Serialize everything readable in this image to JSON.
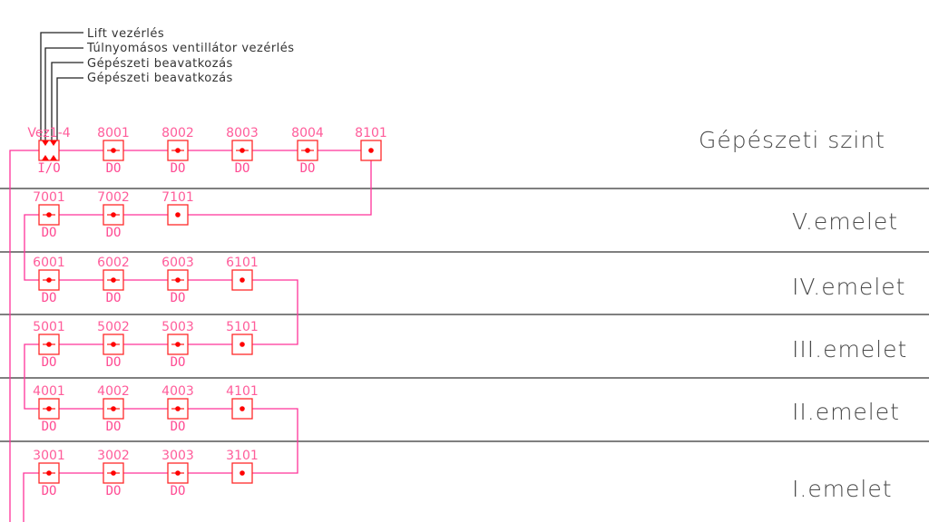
{
  "colors": {
    "wire": "#ff3399",
    "box": "#ff2a2a",
    "label": "#ff5c9a",
    "divider": "#333333",
    "text": "#4a4a4a"
  },
  "legend": [
    "Lift vezérlés",
    "Túlnyomásos ventillátor vezérlés",
    "Gépészeti beavatkozás",
    "Gépészeti beavatkozás"
  ],
  "controller": {
    "id": "Vez1-4",
    "type": "I/O"
  },
  "floors": [
    {
      "name": "Gépészeti szint",
      "devices": [
        {
          "id": "8001",
          "type": "DO"
        },
        {
          "id": "8002",
          "type": "DO"
        },
        {
          "id": "8003",
          "type": "DO"
        },
        {
          "id": "8004",
          "type": "DO"
        },
        {
          "id": "8101",
          "type": ""
        }
      ]
    },
    {
      "name": "V.emelet",
      "devices": [
        {
          "id": "7001",
          "type": "DO"
        },
        {
          "id": "7002",
          "type": "DO"
        },
        {
          "id": "7101",
          "type": ""
        }
      ]
    },
    {
      "name": "IV.emelet",
      "devices": [
        {
          "id": "6001",
          "type": "DO"
        },
        {
          "id": "6002",
          "type": "DO"
        },
        {
          "id": "6003",
          "type": "DO"
        },
        {
          "id": "6101",
          "type": ""
        }
      ]
    },
    {
      "name": "III.emelet",
      "devices": [
        {
          "id": "5001",
          "type": "DO"
        },
        {
          "id": "5002",
          "type": "DO"
        },
        {
          "id": "5003",
          "type": "DO"
        },
        {
          "id": "5101",
          "type": ""
        }
      ]
    },
    {
      "name": "II.emelet",
      "devices": [
        {
          "id": "4001",
          "type": "DO"
        },
        {
          "id": "4002",
          "type": "DO"
        },
        {
          "id": "4003",
          "type": "DO"
        },
        {
          "id": "4101",
          "type": ""
        }
      ]
    },
    {
      "name": "I.emelet",
      "devices": [
        {
          "id": "3001",
          "type": "DO"
        },
        {
          "id": "3002",
          "type": "DO"
        },
        {
          "id": "3003",
          "type": "DO"
        },
        {
          "id": "3101",
          "type": ""
        }
      ]
    }
  ]
}
